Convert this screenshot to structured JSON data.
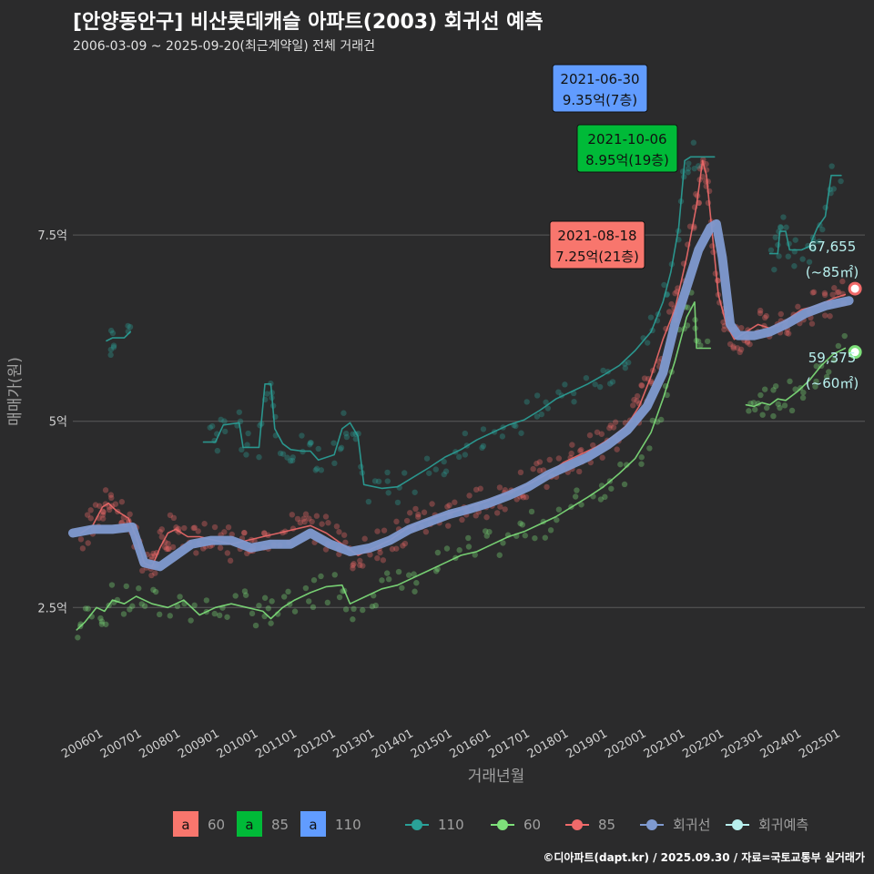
{
  "header": {
    "title": "[안양동안구] 비산롯데캐슬 아파트(2003) 회귀선 예측",
    "subtitle": "2006-03-09 ~ 2025-09-20(최근계약일) 전체 거래건"
  },
  "caption": "©디아파트(dapt.kr) / 2025.09.30 / 자료=국토교통부 실거래가",
  "colors": {
    "bg": "#2b2b2c",
    "grid": "#5a5a5a",
    "s60": "#7ee07a",
    "s85": "#f06a6a",
    "s110": "#2aa198",
    "regression": "#7f9ad0",
    "forecast_text": "#b8f0ee",
    "label60": "#f8766d",
    "label85": "#00ba38",
    "label110": "#619cff"
  },
  "chart_data": {
    "type": "line",
    "xlabel": "거래년월",
    "ylabel": "매매가(원)",
    "x_ticks": [
      "200601",
      "200701",
      "200801",
      "200901",
      "201001",
      "201101",
      "201201",
      "201301",
      "201401",
      "201501",
      "201601",
      "201701",
      "201801",
      "201901",
      "202001",
      "202101",
      "202201",
      "202301",
      "202401",
      "202501"
    ],
    "y_ticks": [
      {
        "value": 2.5,
        "label": "2.5억"
      },
      {
        "value": 5,
        "label": "5억"
      },
      {
        "value": 7.5,
        "label": "7.5억"
      }
    ],
    "xlim": [
      2006.0,
      2026.0
    ],
    "ylim": [
      1.0,
      9.8
    ],
    "series": [
      {
        "name": "110",
        "key": "s110",
        "segments": [
          [
            [
              2006.85,
              6.08
            ],
            [
              2007.0,
              6.12
            ],
            [
              2007.3,
              6.12
            ],
            [
              2007.45,
              6.2
            ]
          ],
          [
            [
              2009.3,
              4.72
            ],
            [
              2009.6,
              4.72
            ],
            [
              2009.8,
              4.95
            ],
            [
              2010.2,
              4.98
            ],
            [
              2010.3,
              4.65
            ],
            [
              2010.7,
              4.65
            ],
            [
              2010.85,
              5.5
            ],
            [
              2011.0,
              5.5
            ],
            [
              2011.1,
              4.9
            ],
            [
              2011.3,
              4.7
            ],
            [
              2011.5,
              4.62
            ],
            [
              2011.8,
              4.6
            ],
            [
              2012.0,
              4.6
            ],
            [
              2012.2,
              4.48
            ],
            [
              2012.6,
              4.55
            ],
            [
              2012.8,
              4.9
            ],
            [
              2013.0,
              4.98
            ],
            [
              2013.2,
              4.8
            ],
            [
              2013.35,
              4.15
            ],
            [
              2013.8,
              4.1
            ],
            [
              2014.2,
              4.12
            ],
            [
              2014.6,
              4.25
            ],
            [
              2015.0,
              4.38
            ],
            [
              2015.4,
              4.52
            ],
            [
              2015.8,
              4.62
            ],
            [
              2016.2,
              4.75
            ],
            [
              2016.6,
              4.85
            ],
            [
              2017.0,
              4.95
            ],
            [
              2017.4,
              5.02
            ],
            [
              2017.8,
              5.15
            ],
            [
              2018.2,
              5.3
            ],
            [
              2018.6,
              5.4
            ],
            [
              2019.0,
              5.5
            ],
            [
              2019.4,
              5.62
            ],
            [
              2019.8,
              5.75
            ],
            [
              2020.2,
              5.95
            ],
            [
              2020.6,
              6.2
            ],
            [
              2020.9,
              6.6
            ],
            [
              2021.1,
              7.0
            ],
            [
              2021.3,
              7.6
            ],
            [
              2021.45,
              8.5
            ],
            [
              2021.6,
              8.55
            ],
            [
              2022.2,
              8.55
            ]
          ],
          [
            [
              2023.6,
              7.25
            ],
            [
              2023.8,
              7.25
            ],
            [
              2023.85,
              7.55
            ],
            [
              2024.0,
              7.55
            ],
            [
              2024.1,
              7.3
            ],
            [
              2024.4,
              7.3
            ],
            [
              2024.6,
              7.35
            ],
            [
              2024.8,
              7.6
            ],
            [
              2025.0,
              7.75
            ],
            [
              2025.15,
              8.3
            ],
            [
              2025.4,
              8.3
            ]
          ]
        ]
      },
      {
        "name": "60",
        "key": "s60",
        "segments": [
          [
            [
              2006.1,
              2.2
            ],
            [
              2006.3,
              2.3
            ],
            [
              2006.6,
              2.5
            ],
            [
              2006.8,
              2.45
            ],
            [
              2007.0,
              2.6
            ],
            [
              2007.3,
              2.55
            ],
            [
              2007.6,
              2.65
            ],
            [
              2008.0,
              2.55
            ],
            [
              2008.4,
              2.5
            ],
            [
              2008.8,
              2.6
            ],
            [
              2009.2,
              2.4
            ],
            [
              2009.6,
              2.5
            ],
            [
              2010.0,
              2.55
            ],
            [
              2010.4,
              2.5
            ],
            [
              2010.8,
              2.45
            ],
            [
              2011.0,
              2.35
            ],
            [
              2011.3,
              2.5
            ],
            [
              2011.6,
              2.6
            ],
            [
              2012.0,
              2.7
            ],
            [
              2012.4,
              2.78
            ],
            [
              2012.8,
              2.8
            ],
            [
              2013.0,
              2.55
            ],
            [
              2013.4,
              2.65
            ],
            [
              2013.8,
              2.75
            ],
            [
              2014.2,
              2.8
            ],
            [
              2014.6,
              2.9
            ],
            [
              2015.0,
              3.0
            ],
            [
              2015.4,
              3.1
            ],
            [
              2015.8,
              3.2
            ],
            [
              2016.2,
              3.25
            ],
            [
              2016.6,
              3.35
            ],
            [
              2017.0,
              3.45
            ],
            [
              2017.4,
              3.52
            ],
            [
              2017.8,
              3.62
            ],
            [
              2018.2,
              3.72
            ],
            [
              2018.6,
              3.85
            ],
            [
              2019.0,
              3.98
            ],
            [
              2019.4,
              4.12
            ],
            [
              2019.8,
              4.3
            ],
            [
              2020.2,
              4.5
            ],
            [
              2020.6,
              4.85
            ],
            [
              2020.9,
              5.3
            ],
            [
              2021.2,
              5.8
            ],
            [
              2021.5,
              6.4
            ],
            [
              2021.7,
              6.6
            ],
            [
              2021.75,
              5.98
            ],
            [
              2022.1,
              5.98
            ]
          ],
          [
            [
              2023.0,
              5.22
            ],
            [
              2023.2,
              5.2
            ],
            [
              2023.4,
              5.25
            ],
            [
              2023.6,
              5.22
            ],
            [
              2023.8,
              5.3
            ],
            [
              2024.0,
              5.28
            ],
            [
              2024.3,
              5.4
            ],
            [
              2024.6,
              5.55
            ],
            [
              2024.9,
              5.75
            ],
            [
              2025.2,
              5.9
            ],
            [
              2025.5,
              5.98
            ]
          ]
        ]
      },
      {
        "name": "85",
        "key": "s85",
        "segments": [
          [
            [
              2006.2,
              3.5
            ],
            [
              2006.5,
              3.6
            ],
            [
              2006.75,
              3.85
            ],
            [
              2006.9,
              3.9
            ],
            [
              2007.1,
              3.8
            ],
            [
              2007.4,
              3.7
            ],
            [
              2007.6,
              3.45
            ],
            [
              2007.8,
              3.1
            ],
            [
              2008.0,
              3.05
            ],
            [
              2008.2,
              3.3
            ],
            [
              2008.4,
              3.5
            ],
            [
              2008.6,
              3.55
            ],
            [
              2008.9,
              3.45
            ],
            [
              2009.2,
              3.45
            ],
            [
              2009.6,
              3.4
            ],
            [
              2010.0,
              3.35
            ],
            [
              2010.4,
              3.4
            ],
            [
              2010.8,
              3.45
            ],
            [
              2011.2,
              3.5
            ],
            [
              2011.6,
              3.55
            ],
            [
              2012.0,
              3.6
            ],
            [
              2012.4,
              3.5
            ],
            [
              2012.8,
              3.35
            ],
            [
              2013.2,
              3.2
            ],
            [
              2013.6,
              3.3
            ],
            [
              2014.0,
              3.4
            ],
            [
              2014.4,
              3.55
            ],
            [
              2014.8,
              3.65
            ],
            [
              2015.2,
              3.72
            ],
            [
              2015.6,
              3.78
            ],
            [
              2016.0,
              3.85
            ],
            [
              2016.4,
              3.92
            ],
            [
              2016.8,
              4.0
            ],
            [
              2017.2,
              4.08
            ],
            [
              2017.6,
              4.18
            ],
            [
              2018.0,
              4.3
            ],
            [
              2018.4,
              4.45
            ],
            [
              2018.8,
              4.55
            ],
            [
              2019.2,
              4.65
            ],
            [
              2019.6,
              4.78
            ],
            [
              2020.0,
              4.95
            ],
            [
              2020.3,
              5.2
            ],
            [
              2020.6,
              5.6
            ],
            [
              2020.9,
              6.1
            ],
            [
              2021.2,
              6.5
            ],
            [
              2021.5,
              7.2
            ],
            [
              2021.75,
              7.9
            ],
            [
              2021.9,
              8.5
            ],
            [
              2022.0,
              8.3
            ],
            [
              2022.15,
              7.5
            ],
            [
              2022.3,
              6.7
            ],
            [
              2022.5,
              6.3
            ],
            [
              2022.7,
              6.1
            ],
            [
              2023.0,
              6.2
            ],
            [
              2023.3,
              6.3
            ],
            [
              2023.6,
              6.25
            ],
            [
              2024.0,
              6.35
            ],
            [
              2024.4,
              6.5
            ],
            [
              2024.8,
              6.55
            ],
            [
              2025.2,
              6.65
            ],
            [
              2025.5,
              6.7
            ]
          ]
        ]
      },
      {
        "name": "회귀선",
        "key": "regression",
        "segments": [
          [
            [
              2006.0,
              3.5
            ],
            [
              2006.5,
              3.55
            ],
            [
              2007.0,
              3.55
            ],
            [
              2007.5,
              3.58
            ],
            [
              2007.8,
              3.1
            ],
            [
              2008.2,
              3.05
            ],
            [
              2008.6,
              3.2
            ],
            [
              2009.0,
              3.35
            ],
            [
              2009.5,
              3.4
            ],
            [
              2010.0,
              3.4
            ],
            [
              2010.5,
              3.3
            ],
            [
              2011.0,
              3.35
            ],
            [
              2011.5,
              3.35
            ],
            [
              2012.0,
              3.5
            ],
            [
              2012.5,
              3.35
            ],
            [
              2013.0,
              3.25
            ],
            [
              2013.5,
              3.3
            ],
            [
              2014.0,
              3.4
            ],
            [
              2014.5,
              3.55
            ],
            [
              2015.0,
              3.65
            ],
            [
              2015.5,
              3.75
            ],
            [
              2016.0,
              3.82
            ],
            [
              2016.5,
              3.9
            ],
            [
              2017.0,
              4.0
            ],
            [
              2017.5,
              4.12
            ],
            [
              2018.0,
              4.28
            ],
            [
              2018.5,
              4.4
            ],
            [
              2019.0,
              4.52
            ],
            [
              2019.5,
              4.68
            ],
            [
              2020.0,
              4.88
            ],
            [
              2020.5,
              5.2
            ],
            [
              2020.9,
              5.65
            ],
            [
              2021.2,
              6.3
            ],
            [
              2021.5,
              6.8
            ],
            [
              2021.8,
              7.3
            ],
            [
              2022.1,
              7.6
            ],
            [
              2022.25,
              7.65
            ],
            [
              2022.4,
              7.2
            ],
            [
              2022.6,
              6.3
            ],
            [
              2022.8,
              6.15
            ],
            [
              2023.2,
              6.15
            ],
            [
              2023.6,
              6.2
            ],
            [
              2024.0,
              6.3
            ],
            [
              2024.5,
              6.45
            ],
            [
              2025.0,
              6.55
            ],
            [
              2025.6,
              6.62
            ]
          ]
        ]
      }
    ],
    "callouts": [
      {
        "date": "2021-06-30",
        "price": "9.35억(7층)",
        "key": "label110",
        "x": 2021.5,
        "y": 9.35
      },
      {
        "date": "2021-10-06",
        "price": "8.95억(19층)",
        "key": "label85",
        "x": 2021.75,
        "y": 8.95
      },
      {
        "date": "2021-08-18",
        "price": "7.25억(21층)",
        "key": "label60",
        "x": 2021.6,
        "y": 7.25
      }
    ],
    "forecast": [
      {
        "value": "67,655",
        "area": "(~85㎡)",
        "key": "s85",
        "x": 2025.75,
        "y": 6.78
      },
      {
        "value": "59,375",
        "area": "(~60㎡)",
        "key": "s60",
        "x": 2025.75,
        "y": 5.93
      }
    ],
    "legend": {
      "placement": "bottom",
      "label_keys": [
        {
          "glyph": "a",
          "label": "60",
          "key": "label60"
        },
        {
          "glyph": "a",
          "label": "85",
          "key": "label85"
        },
        {
          "glyph": "a",
          "label": "110",
          "key": "label110"
        }
      ],
      "line_keys": [
        {
          "label": "110",
          "key": "s110"
        },
        {
          "label": "60",
          "key": "s60"
        },
        {
          "label": "85",
          "key": "s85"
        },
        {
          "label": "회귀선",
          "key": "regression"
        },
        {
          "label": "회귀예측",
          "key": "forecast_text"
        }
      ]
    }
  }
}
